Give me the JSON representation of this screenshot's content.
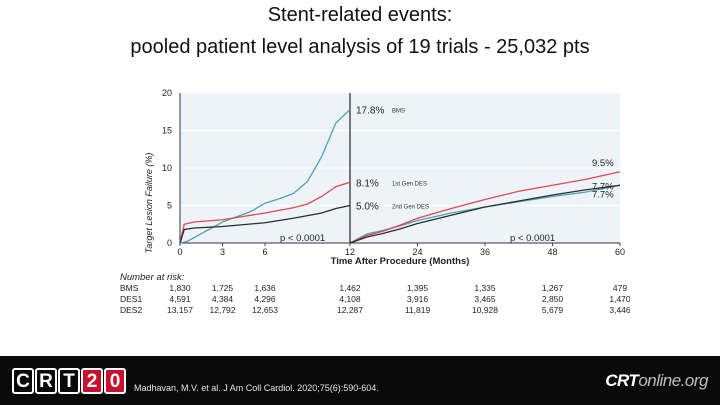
{
  "slide": {
    "title_line1": "Stent-related events:",
    "title_line2": "pooled patient level analysis of 19 trials - 25,032 pts"
  },
  "footer": {
    "logo_letters": [
      "C",
      "R",
      "T",
      "2",
      "0"
    ],
    "citation": "Madhavan, M.V. et al. J Am Coll Cardiol. 2020;75(6):590-604.",
    "brand_main": "CRT",
    "brand_light": "online.org"
  },
  "colors": {
    "bms": "#4aa3c0",
    "des1": "#e0484d",
    "des2": "#2b2b2b",
    "accent": "#c8102e"
  },
  "chart_data": {
    "type": "line",
    "title": "",
    "xlabel": "Time After Procedure (Months)",
    "ylabel": "Target Lesion Failure (%)",
    "xlim": [
      0,
      60
    ],
    "ylim": [
      0,
      20
    ],
    "xticks": [
      0,
      3,
      6,
      12,
      24,
      36,
      48,
      60
    ],
    "yticks": [
      0,
      5,
      10,
      15,
      20
    ],
    "landmark_month": 12,
    "series": [
      {
        "name": "BMS",
        "end_label": "17.8%",
        "tag": "BMS",
        "landmark_points": [
          [
            0,
            0.0
          ],
          [
            0.5,
            0.2
          ],
          [
            3,
            2.8
          ],
          [
            4,
            3.5
          ],
          [
            5,
            4.2
          ],
          [
            6,
            5.3
          ],
          [
            7,
            5.9
          ],
          [
            8,
            6.6
          ],
          [
            9,
            8.2
          ],
          [
            10,
            11.5
          ],
          [
            11,
            16.0
          ],
          [
            12,
            17.8
          ]
        ],
        "late_points": [
          [
            12,
            0.0
          ],
          [
            15,
            1.2
          ],
          [
            18,
            1.7
          ],
          [
            21,
            2.3
          ],
          [
            24,
            3.0
          ],
          [
            30,
            4.0
          ],
          [
            36,
            4.8
          ],
          [
            42,
            5.5
          ],
          [
            48,
            6.2
          ],
          [
            54,
            6.8
          ],
          [
            60,
            7.7
          ]
        ],
        "late_label": "7.7%"
      },
      {
        "name": "DES1",
        "end_label": "8.1%",
        "tag": "1st Gen DES",
        "landmark_points": [
          [
            0,
            0.0
          ],
          [
            0.3,
            2.5
          ],
          [
            1,
            2.8
          ],
          [
            3,
            3.1
          ],
          [
            4,
            3.4
          ],
          [
            6,
            4.0
          ],
          [
            8,
            4.7
          ],
          [
            9,
            5.2
          ],
          [
            10,
            6.2
          ],
          [
            11,
            7.5
          ],
          [
            12,
            8.1
          ]
        ],
        "late_points": [
          [
            12,
            0.0
          ],
          [
            15,
            1.0
          ],
          [
            18,
            1.6
          ],
          [
            21,
            2.4
          ],
          [
            24,
            3.3
          ],
          [
            30,
            4.6
          ],
          [
            36,
            5.8
          ],
          [
            42,
            6.9
          ],
          [
            48,
            7.7
          ],
          [
            54,
            8.5
          ],
          [
            60,
            9.5
          ]
        ],
        "late_label": "9.5%"
      },
      {
        "name": "DES2",
        "end_label": "5.0%",
        "tag": "2nd Gen DES",
        "landmark_points": [
          [
            0,
            0.0
          ],
          [
            0.3,
            1.8
          ],
          [
            1,
            2.0
          ],
          [
            3,
            2.2
          ],
          [
            6,
            2.7
          ],
          [
            8,
            3.3
          ],
          [
            10,
            4.0
          ],
          [
            11,
            4.6
          ],
          [
            12,
            5.0
          ]
        ],
        "late_points": [
          [
            12,
            0.0
          ],
          [
            15,
            0.8
          ],
          [
            18,
            1.3
          ],
          [
            21,
            1.9
          ],
          [
            24,
            2.6
          ],
          [
            30,
            3.7
          ],
          [
            36,
            4.8
          ],
          [
            42,
            5.6
          ],
          [
            48,
            6.4
          ],
          [
            54,
            7.1
          ],
          [
            60,
            7.7
          ]
        ],
        "late_label": "7.7%"
      }
    ],
    "annotations": {
      "p_left": "p < 0.0001",
      "p_right": "p < 0.0001"
    },
    "risk_table": {
      "title": "Number at risk:",
      "months": [
        0,
        3,
        6,
        12,
        24,
        36,
        48,
        60
      ],
      "rows": [
        {
          "name": "BMS",
          "values": [
            "1,830",
            "1,725",
            "1,636",
            "1,462",
            "1,395",
            "1,335",
            "1,267",
            "479"
          ]
        },
        {
          "name": "DES1",
          "values": [
            "4,591",
            "4,384",
            "4,296",
            "4,108",
            "3,916",
            "3,465",
            "2,850",
            "1,470"
          ]
        },
        {
          "name": "DES2",
          "values": [
            "13,157",
            "12,792",
            "12,653",
            "12,287",
            "11,819",
            "10,928",
            "5,679",
            "3,446"
          ]
        }
      ]
    }
  }
}
